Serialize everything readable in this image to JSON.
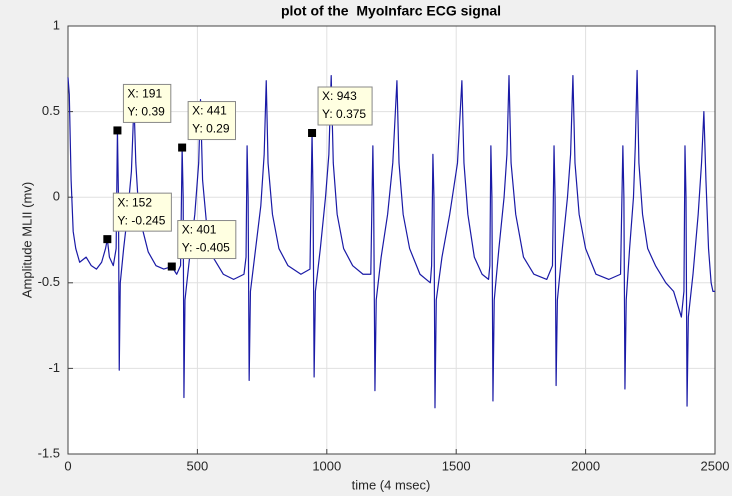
{
  "chart_data": {
    "type": "line",
    "title": "plot of the  MyoInfarc ECG signal",
    "x_label": "time (4 msec)",
    "y_label": "Amplitude MLII (mv)",
    "color": "#1a1aa6",
    "grid": true,
    "xlim": [
      0,
      2500
    ],
    "xticks": [
      0,
      500,
      1000,
      1500,
      2000,
      2500
    ],
    "ylim": [
      -1.5,
      1
    ],
    "yticks": [
      -1.5,
      -1,
      -0.5,
      0,
      0.5,
      1
    ],
    "x": [
      0,
      5,
      12,
      20,
      30,
      45,
      70,
      90,
      110,
      130,
      145,
      152,
      160,
      175,
      186,
      191,
      195,
      198,
      202,
      215,
      230,
      245,
      255,
      262,
      272,
      290,
      310,
      340,
      370,
      401,
      420,
      435,
      441,
      445,
      448,
      452,
      470,
      490,
      505,
      512,
      520,
      535,
      560,
      600,
      640,
      680,
      688,
      692,
      696,
      700,
      705,
      725,
      745,
      758,
      766,
      773,
      790,
      815,
      850,
      900,
      935,
      943,
      947,
      951,
      956,
      975,
      995,
      1008,
      1017,
      1025,
      1040,
      1065,
      1100,
      1140,
      1170,
      1178,
      1181,
      1186,
      1191,
      1210,
      1235,
      1255,
      1271,
      1279,
      1295,
      1320,
      1360,
      1400,
      1405,
      1410,
      1414,
      1418,
      1423,
      1445,
      1475,
      1505,
      1522,
      1530,
      1545,
      1570,
      1600,
      1625,
      1630,
      1634,
      1638,
      1642,
      1647,
      1665,
      1685,
      1696,
      1704,
      1712,
      1730,
      1760,
      1800,
      1850,
      1872,
      1878,
      1882,
      1886,
      1891,
      1910,
      1930,
      1942,
      1951,
      1959,
      1975,
      2000,
      2040,
      2090,
      2135,
      2144,
      2148,
      2152,
      2157,
      2170,
      2185,
      2192,
      2199,
      2206,
      2220,
      2240,
      2270,
      2310,
      2340,
      2370,
      2380,
      2384,
      2388,
      2392,
      2397,
      2415,
      2435,
      2448,
      2457,
      2465,
      2475,
      2485,
      2492,
      2500
    ],
    "values": [
      0.7,
      0.6,
      0.1,
      -0.2,
      -0.3,
      -0.38,
      -0.35,
      -0.4,
      -0.42,
      -0.38,
      -0.3,
      -0.245,
      -0.35,
      -0.4,
      -0.3,
      0.39,
      0.0,
      -1.01,
      -0.5,
      -0.3,
      -0.1,
      0.15,
      0.55,
      0.2,
      -0.05,
      -0.2,
      -0.32,
      -0.4,
      -0.42,
      -0.405,
      -0.45,
      -0.4,
      0.29,
      0.0,
      -1.17,
      -0.6,
      -0.35,
      -0.1,
      0.2,
      0.57,
      0.1,
      -0.15,
      -0.35,
      -0.45,
      -0.48,
      -0.45,
      -0.35,
      0.3,
      0.0,
      -1.07,
      -0.55,
      -0.3,
      -0.05,
      0.25,
      0.68,
      0.2,
      -0.1,
      -0.3,
      -0.4,
      -0.45,
      -0.42,
      0.375,
      0.0,
      -1.05,
      -0.55,
      -0.3,
      0.0,
      0.25,
      0.71,
      0.2,
      -0.1,
      -0.3,
      -0.4,
      -0.45,
      -0.45,
      0.3,
      0.0,
      -1.13,
      -0.6,
      -0.35,
      -0.1,
      0.2,
      0.68,
      0.2,
      -0.1,
      -0.3,
      -0.45,
      -0.5,
      -0.4,
      0.25,
      0.0,
      -1.23,
      -0.6,
      -0.35,
      -0.1,
      0.2,
      0.68,
      0.2,
      -0.1,
      -0.35,
      -0.45,
      -0.48,
      -0.4,
      0.3,
      0.0,
      -1.19,
      -0.6,
      -0.3,
      0.0,
      0.25,
      0.71,
      0.2,
      -0.1,
      -0.35,
      -0.45,
      -0.48,
      -0.4,
      0.3,
      0.0,
      -1.1,
      -0.6,
      -0.3,
      0.0,
      0.25,
      0.71,
      0.2,
      -0.1,
      -0.3,
      -0.45,
      -0.48,
      -0.45,
      0.3,
      0.0,
      -1.12,
      -0.6,
      -0.3,
      0.0,
      0.3,
      0.74,
      0.2,
      -0.1,
      -0.3,
      -0.4,
      -0.5,
      -0.55,
      -0.7,
      -0.55,
      0.3,
      0.0,
      -1.22,
      -0.7,
      -0.45,
      -0.1,
      0.2,
      0.5,
      0.1,
      -0.3,
      -0.5,
      -0.55,
      -0.55
    ],
    "annotations": [
      {
        "x": 191,
        "y": 0.39,
        "x_label": "X: 191",
        "y_label": "Y: 0.39"
      },
      {
        "x": 152,
        "y": -0.245,
        "x_label": "X: 152",
        "y_label": "Y: -0.245"
      },
      {
        "x": 401,
        "y": -0.405,
        "x_label": "X: 401",
        "y_label": "Y: -0.405"
      },
      {
        "x": 441,
        "y": 0.29,
        "x_label": "X: 441",
        "y_label": "Y: 0.29"
      },
      {
        "x": 943,
        "y": 0.375,
        "x_label": "X: 943",
        "y_label": "Y: 0.375"
      }
    ]
  }
}
